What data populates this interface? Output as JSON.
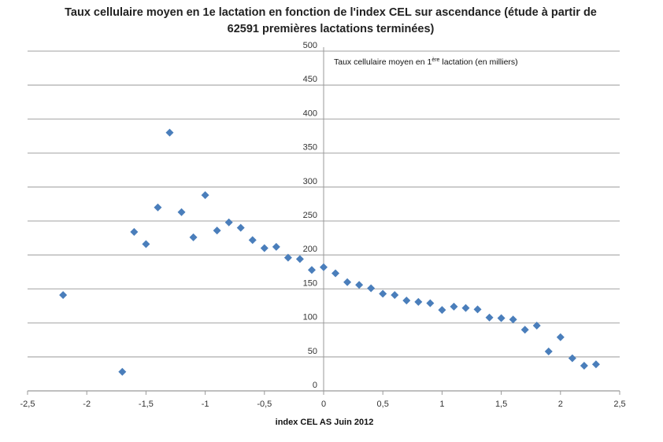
{
  "chart_data": {
    "type": "scatter",
    "title": "Taux cellulaire moyen en 1e lactation en fonction de l'index  CEL sur ascendance (étude à partir de 62591 premières lactations terminées)",
    "xlabel": "index CEL AS Juin 2012",
    "ylabel_main": "Taux cellulaire moyen en 1",
    "ylabel_sup": "ère",
    "ylabel_rest": " lactation (en milliers)",
    "xlim": [
      -2.5,
      2.5
    ],
    "ylim": [
      0,
      500
    ],
    "xticks": [
      "-2,5",
      "-2",
      "-1,5",
      "-1",
      "-0,5",
      "0",
      "0,5",
      "1",
      "1,5",
      "2",
      "2,5"
    ],
    "yticks": [
      "0",
      "50",
      "100",
      "150",
      "200",
      "250",
      "300",
      "350",
      "400",
      "450",
      "500"
    ],
    "grid": "horizontal",
    "marker": "diamond",
    "color": "#4a7ebb",
    "x": [
      -2.2,
      -1.7,
      -1.6,
      -1.5,
      -1.4,
      -1.3,
      -1.2,
      -1.1,
      -1.0,
      -0.9,
      -0.8,
      -0.7,
      -0.6,
      -0.5,
      -0.4,
      -0.3,
      -0.2,
      -0.1,
      0,
      0.1,
      0.2,
      0.3,
      0.4,
      0.5,
      0.6,
      0.7,
      0.8,
      0.9,
      1.0,
      1.1,
      1.2,
      1.3,
      1.4,
      1.5,
      1.6,
      1.7,
      1.8,
      1.9,
      2.0,
      2.1,
      2.2,
      2.3
    ],
    "y": [
      141,
      28,
      234,
      216,
      270,
      380,
      263,
      226,
      288,
      236,
      248,
      240,
      222,
      210,
      212,
      196,
      194,
      178,
      182,
      173,
      160,
      156,
      151,
      143,
      141,
      133,
      131,
      129,
      119,
      124,
      122,
      120,
      108,
      107,
      105,
      90,
      96,
      58,
      79,
      48,
      37,
      39
    ]
  }
}
